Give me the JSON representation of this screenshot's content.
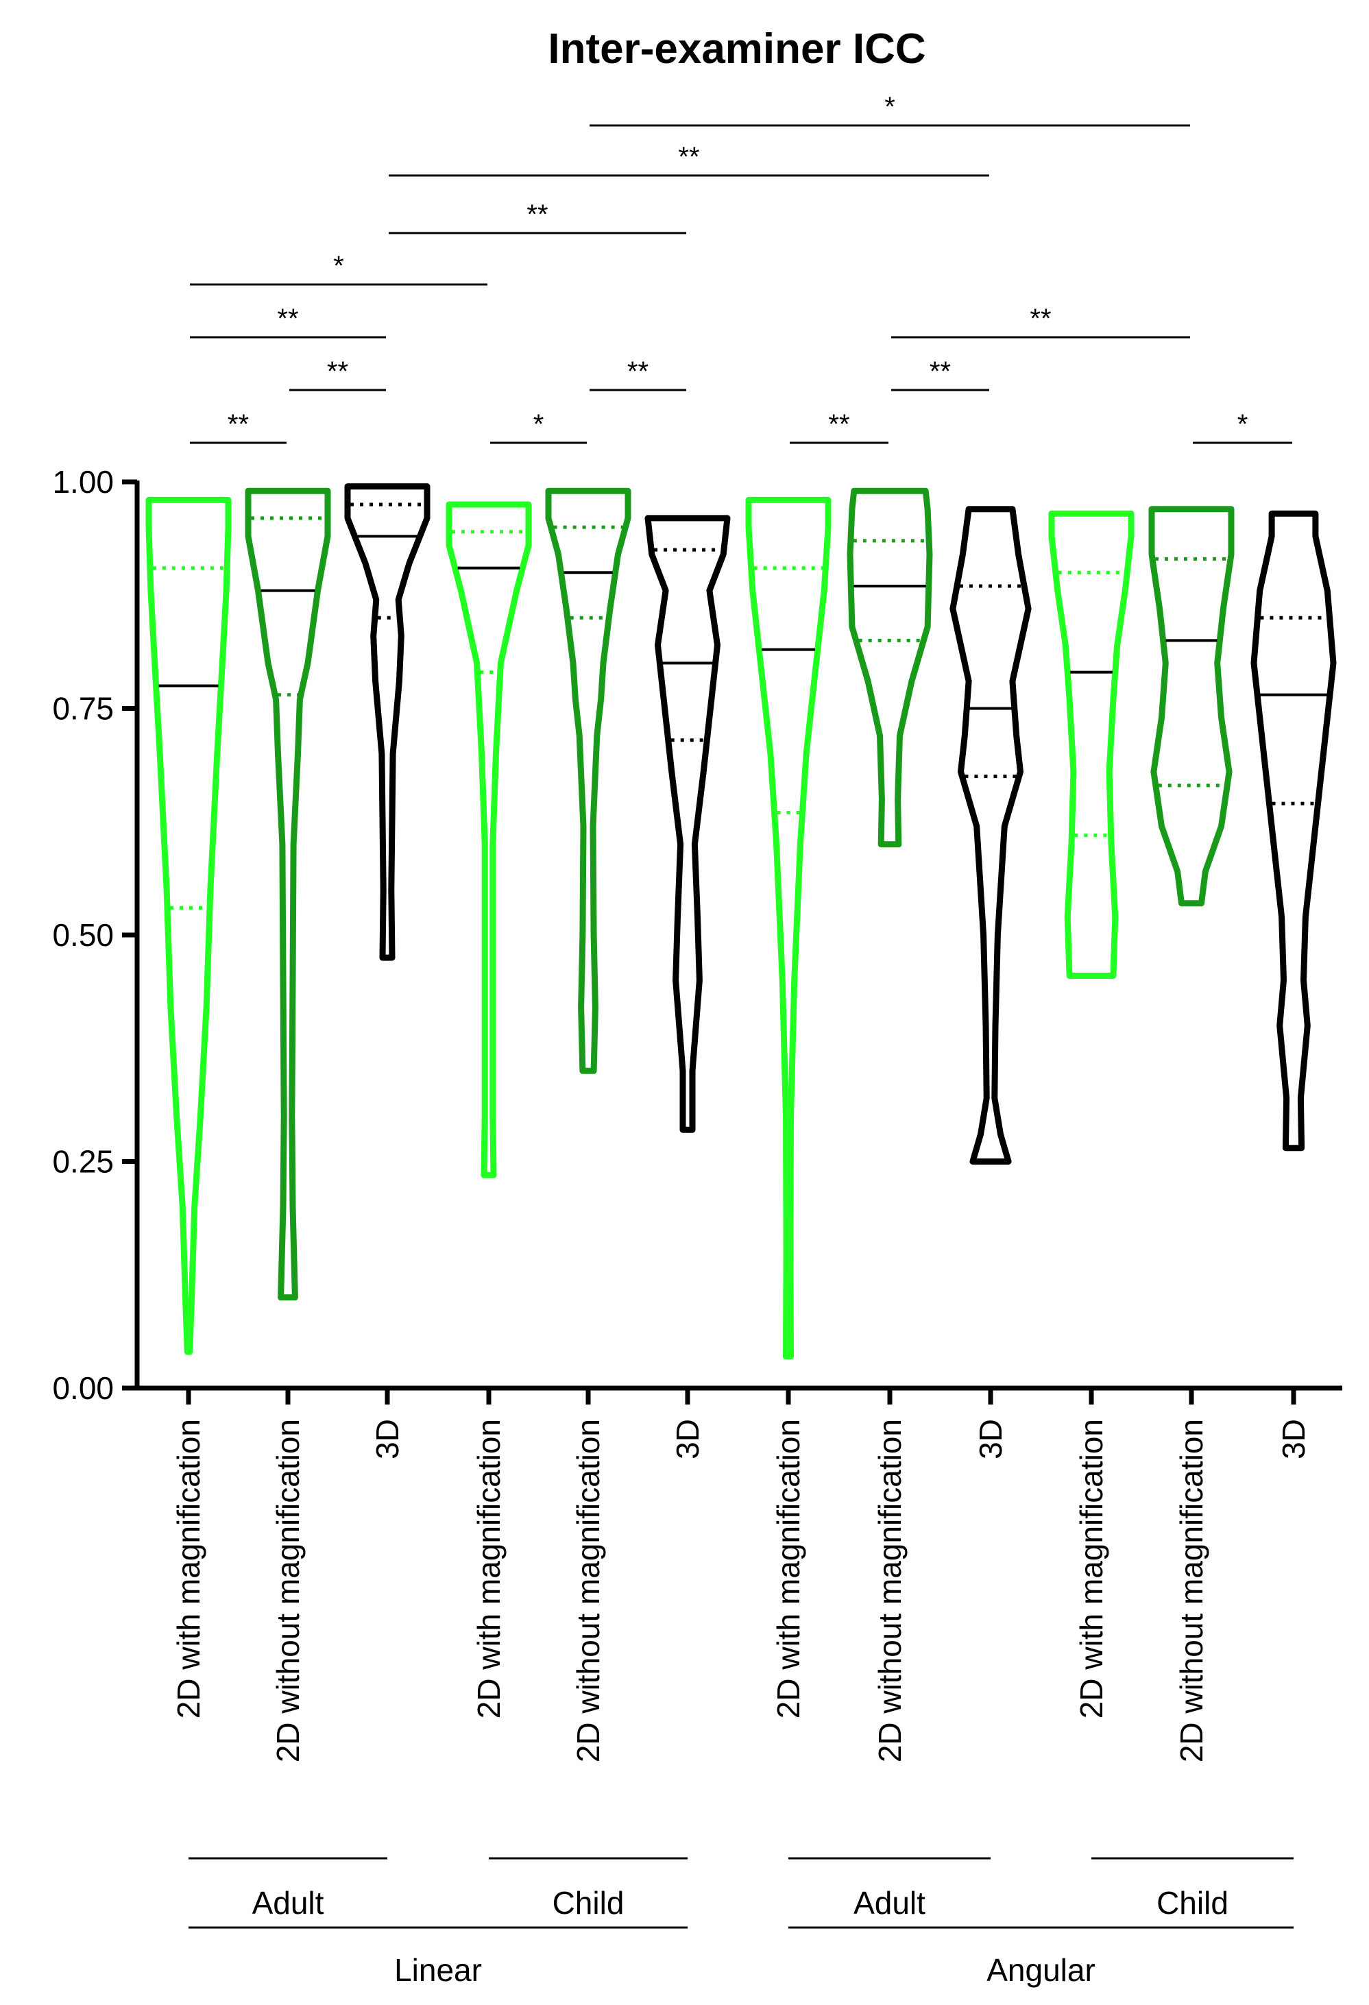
{
  "chart_data": {
    "type": "violin",
    "title": "Inter-examiner ICC",
    "ylim": [
      0,
      1
    ],
    "yticks": [
      "0.00",
      "0.25",
      "0.50",
      "0.75",
      "1.00"
    ],
    "categories": [
      "2D with magnification",
      "2D without magnification",
      "3D",
      "2D with magnification",
      "2D without magnification",
      "3D",
      "2D with magnification",
      "2D without magnification",
      "3D",
      "2D with magnification",
      "2D without magnification",
      "3D"
    ],
    "colors": {
      "2D with magnification": "#22ff22",
      "2D without magnification": "#1a9a1a",
      "3D": "#000000"
    },
    "violins": [
      {
        "min": 0.04,
        "max": 0.98,
        "median": 0.775,
        "q1": 0.53,
        "q3": 0.905,
        "profile": [
          [
            0.04,
            0.03
          ],
          [
            0.1,
            0.08
          ],
          [
            0.2,
            0.15
          ],
          [
            0.3,
            0.3
          ],
          [
            0.42,
            0.45
          ],
          [
            0.55,
            0.55
          ],
          [
            0.7,
            0.72
          ],
          [
            0.8,
            0.85
          ],
          [
            0.88,
            0.95
          ],
          [
            0.95,
            1.0
          ],
          [
            0.98,
            1.0
          ]
        ]
      },
      {
        "min": 0.1,
        "max": 0.99,
        "median": 0.88,
        "q1": 0.765,
        "q3": 0.96,
        "profile": [
          [
            0.1,
            0.18
          ],
          [
            0.2,
            0.12
          ],
          [
            0.3,
            0.1
          ],
          [
            0.45,
            0.12
          ],
          [
            0.6,
            0.14
          ],
          [
            0.7,
            0.25
          ],
          [
            0.76,
            0.3
          ],
          [
            0.8,
            0.5
          ],
          [
            0.88,
            0.75
          ],
          [
            0.94,
            1.0
          ],
          [
            0.99,
            1.0
          ]
        ]
      },
      {
        "min": 0.475,
        "max": 0.995,
        "median": 0.94,
        "q1": 0.85,
        "q3": 0.975,
        "profile": [
          [
            0.475,
            0.12
          ],
          [
            0.55,
            0.1
          ],
          [
            0.7,
            0.14
          ],
          [
            0.78,
            0.3
          ],
          [
            0.83,
            0.35
          ],
          [
            0.87,
            0.28
          ],
          [
            0.91,
            0.55
          ],
          [
            0.96,
            1.0
          ],
          [
            0.995,
            1.0
          ]
        ]
      },
      {
        "min": 0.235,
        "max": 0.975,
        "median": 0.905,
        "q1": 0.79,
        "q3": 0.945,
        "profile": [
          [
            0.235,
            0.12
          ],
          [
            0.3,
            0.1
          ],
          [
            0.45,
            0.1
          ],
          [
            0.6,
            0.1
          ],
          [
            0.7,
            0.18
          ],
          [
            0.8,
            0.3
          ],
          [
            0.88,
            0.7
          ],
          [
            0.93,
            1.0
          ],
          [
            0.975,
            1.0
          ]
        ]
      },
      {
        "min": 0.35,
        "max": 0.99,
        "median": 0.9,
        "q1": 0.85,
        "q3": 0.95,
        "profile": [
          [
            0.35,
            0.14
          ],
          [
            0.42,
            0.18
          ],
          [
            0.5,
            0.14
          ],
          [
            0.62,
            0.12
          ],
          [
            0.72,
            0.22
          ],
          [
            0.76,
            0.32
          ],
          [
            0.8,
            0.38
          ],
          [
            0.86,
            0.55
          ],
          [
            0.92,
            0.75
          ],
          [
            0.96,
            1.0
          ],
          [
            0.99,
            1.0
          ]
        ]
      },
      {
        "min": 0.285,
        "max": 0.96,
        "median": 0.8,
        "q1": 0.715,
        "q3": 0.925,
        "profile": [
          [
            0.285,
            0.12
          ],
          [
            0.35,
            0.12
          ],
          [
            0.45,
            0.3
          ],
          [
            0.52,
            0.25
          ],
          [
            0.6,
            0.18
          ],
          [
            0.68,
            0.4
          ],
          [
            0.74,
            0.55
          ],
          [
            0.82,
            0.75
          ],
          [
            0.88,
            0.55
          ],
          [
            0.92,
            0.9
          ],
          [
            0.96,
            1.0
          ]
        ]
      },
      {
        "min": 0.035,
        "max": 0.98,
        "median": 0.815,
        "q1": 0.635,
        "q3": 0.905,
        "profile": [
          [
            0.035,
            0.06
          ],
          [
            0.15,
            0.05
          ],
          [
            0.3,
            0.06
          ],
          [
            0.45,
            0.15
          ],
          [
            0.6,
            0.3
          ],
          [
            0.7,
            0.45
          ],
          [
            0.8,
            0.7
          ],
          [
            0.88,
            0.9
          ],
          [
            0.95,
            1.0
          ],
          [
            0.98,
            1.0
          ]
        ]
      },
      {
        "min": 0.6,
        "max": 0.99,
        "median": 0.885,
        "q1": 0.825,
        "q3": 0.935,
        "profile": [
          [
            0.6,
            0.22
          ],
          [
            0.65,
            0.2
          ],
          [
            0.72,
            0.25
          ],
          [
            0.78,
            0.55
          ],
          [
            0.84,
            0.95
          ],
          [
            0.92,
            1.0
          ],
          [
            0.97,
            0.95
          ],
          [
            0.99,
            0.9
          ]
        ]
      },
      {
        "min": 0.25,
        "max": 0.97,
        "median": 0.75,
        "q1": 0.675,
        "q3": 0.885,
        "profile": [
          [
            0.25,
            0.45
          ],
          [
            0.28,
            0.25
          ],
          [
            0.32,
            0.1
          ],
          [
            0.4,
            0.12
          ],
          [
            0.5,
            0.18
          ],
          [
            0.62,
            0.35
          ],
          [
            0.68,
            0.75
          ],
          [
            0.72,
            0.65
          ],
          [
            0.78,
            0.55
          ],
          [
            0.86,
            0.95
          ],
          [
            0.92,
            0.7
          ],
          [
            0.97,
            0.55
          ]
        ]
      },
      {
        "min": 0.455,
        "max": 0.965,
        "median": 0.79,
        "q1": 0.61,
        "q3": 0.9,
        "profile": [
          [
            0.455,
            0.55
          ],
          [
            0.52,
            0.6
          ],
          [
            0.6,
            0.5
          ],
          [
            0.68,
            0.45
          ],
          [
            0.76,
            0.55
          ],
          [
            0.82,
            0.65
          ],
          [
            0.88,
            0.85
          ],
          [
            0.94,
            1.0
          ],
          [
            0.965,
            1.0
          ]
        ]
      },
      {
        "min": 0.535,
        "max": 0.97,
        "median": 0.825,
        "q1": 0.665,
        "q3": 0.915,
        "profile": [
          [
            0.535,
            0.25
          ],
          [
            0.57,
            0.35
          ],
          [
            0.62,
            0.75
          ],
          [
            0.68,
            0.95
          ],
          [
            0.74,
            0.75
          ],
          [
            0.8,
            0.65
          ],
          [
            0.86,
            0.8
          ],
          [
            0.92,
            1.0
          ],
          [
            0.97,
            1.0
          ]
        ]
      },
      {
        "min": 0.265,
        "max": 0.965,
        "median": 0.765,
        "q1": 0.645,
        "q3": 0.85,
        "profile": [
          [
            0.265,
            0.2
          ],
          [
            0.32,
            0.18
          ],
          [
            0.4,
            0.35
          ],
          [
            0.45,
            0.25
          ],
          [
            0.52,
            0.3
          ],
          [
            0.6,
            0.5
          ],
          [
            0.7,
            0.75
          ],
          [
            0.8,
            1.0
          ],
          [
            0.88,
            0.85
          ],
          [
            0.94,
            0.55
          ],
          [
            0.965,
            0.55
          ]
        ]
      }
    ],
    "significance": [
      {
        "from": 1,
        "to": 2,
        "label": "**"
      },
      {
        "from": 2,
        "to": 3,
        "label": "**"
      },
      {
        "from": 1,
        "to": 3,
        "label": "**"
      },
      {
        "from": 1,
        "to": 4,
        "label": "*"
      },
      {
        "from": 4,
        "to": 5,
        "label": "*"
      },
      {
        "from": 5,
        "to": 6,
        "label": "**"
      },
      {
        "from": 3,
        "to": 6,
        "label": "**"
      },
      {
        "from": 3,
        "to": 9,
        "label": "**"
      },
      {
        "from": 5,
        "to": 11,
        "label": "*"
      },
      {
        "from": 7,
        "to": 8,
        "label": "**"
      },
      {
        "from": 8,
        "to": 9,
        "label": "**"
      },
      {
        "from": 8,
        "to": 11,
        "label": "**"
      },
      {
        "from": 11,
        "to": 12,
        "label": "*"
      }
    ],
    "groups_inner": [
      {
        "label": "Adult",
        "from": 1,
        "to": 3
      },
      {
        "label": "Child",
        "from": 4,
        "to": 6
      },
      {
        "label": "Adult",
        "from": 7,
        "to": 9
      },
      {
        "label": "Child",
        "from": 10,
        "to": 12
      }
    ],
    "groups_outer": [
      {
        "label": "Linear",
        "from": 1,
        "to": 6
      },
      {
        "label": "Angular",
        "from": 7,
        "to": 12
      }
    ]
  }
}
